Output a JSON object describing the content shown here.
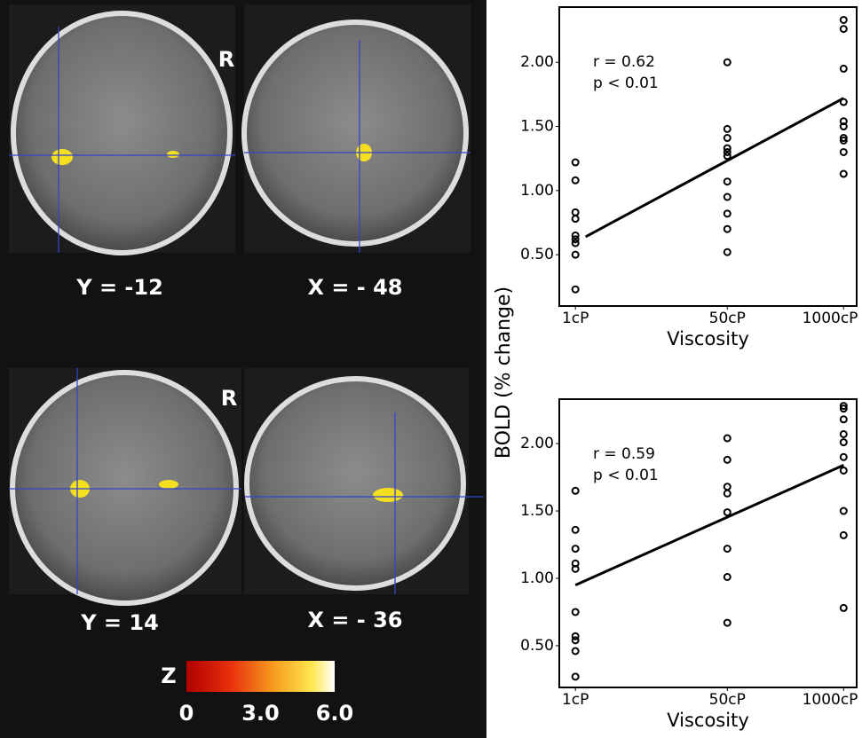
{
  "brain_panel": {
    "top_left_label": "Y = -12",
    "top_right_label": "X = - 48",
    "top_side": "R",
    "bottom_left_label": "Y = 14",
    "bottom_right_label": "X = - 36",
    "bottom_side": "R",
    "colorbar": {
      "label": "Z",
      "lim": [
        0,
        6
      ],
      "ticks": [
        0,
        {
          "value": 3,
          "label": "3.0"
        },
        {
          "value": 6,
          "label": "6.0"
        }
      ]
    }
  },
  "shared_ylabel": "BOLD (% change)",
  "chart_data": [
    {
      "type": "scatter",
      "xlabel": "Viscosity",
      "annotations": [
        "r = 0.62",
        "p < 0.01"
      ],
      "color": "#000000",
      "xscale": "log",
      "xlim": [
        0.66,
        1400
      ],
      "xticks": [
        {
          "value": 1,
          "label": "1cP"
        },
        {
          "value": 50,
          "label": "50cP"
        },
        {
          "value": 1000,
          "label": "1000cP"
        }
      ],
      "ylim": [
        0.1,
        2.43
      ],
      "yticks": [
        {
          "value": 0.5,
          "label": "0.50"
        },
        {
          "value": 1,
          "label": "1.00"
        },
        {
          "value": 1.5,
          "label": "1.50"
        },
        {
          "value": 2,
          "label": "2.00"
        }
      ],
      "x": [
        1,
        1,
        1,
        1,
        1,
        1,
        1,
        1,
        1,
        50,
        50,
        50,
        50,
        50,
        50,
        50,
        50,
        50,
        50,
        50,
        1000,
        1000,
        1000,
        1000,
        1000,
        1000,
        1000,
        1000,
        1000,
        1000
      ],
      "values": [
        1.22,
        1.08,
        0.83,
        0.78,
        0.65,
        0.62,
        0.59,
        0.5,
        0.23,
        2.0,
        1.48,
        1.41,
        1.33,
        1.3,
        1.27,
        1.07,
        0.95,
        0.82,
        0.7,
        0.52,
        2.33,
        2.26,
        1.95,
        1.69,
        1.54,
        1.5,
        1.41,
        1.39,
        1.3,
        1.13
      ],
      "fit": {
        "x": [
          1.3,
          1000
        ],
        "values": [
          0.64,
          1.72
        ]
      }
    },
    {
      "type": "scatter",
      "xlabel": "Viscosity",
      "annotations": [
        "r = 0.59",
        "p < 0.01"
      ],
      "color": "#000000",
      "xscale": "log",
      "xlim": [
        0.66,
        1400
      ],
      "xticks": [
        {
          "value": 1,
          "label": "1cP"
        },
        {
          "value": 50,
          "label": "50cP"
        },
        {
          "value": 1000,
          "label": "1000cP"
        }
      ],
      "ylim": [
        0.19,
        2.33
      ],
      "yticks": [
        {
          "value": 0.5,
          "label": "0.50"
        },
        {
          "value": 1,
          "label": "1.00"
        },
        {
          "value": 1.5,
          "label": "1.50"
        },
        {
          "value": 2,
          "label": "2.00"
        }
      ],
      "x": [
        1,
        1,
        1,
        1,
        1,
        1,
        1,
        1,
        1,
        1,
        50,
        50,
        50,
        50,
        50,
        50,
        50,
        50,
        1000,
        1000,
        1000,
        1000,
        1000,
        1000,
        1000,
        1000,
        1000,
        1000
      ],
      "values": [
        1.65,
        1.36,
        1.22,
        1.11,
        1.07,
        0.75,
        0.57,
        0.54,
        0.46,
        0.27,
        2.04,
        1.88,
        1.68,
        1.63,
        1.49,
        1.22,
        1.01,
        0.67,
        2.28,
        2.26,
        2.18,
        2.07,
        2.01,
        1.9,
        1.8,
        1.5,
        1.32,
        0.78
      ],
      "fit": {
        "x": [
          1,
          1000
        ],
        "values": [
          0.95,
          1.84
        ]
      }
    }
  ]
}
